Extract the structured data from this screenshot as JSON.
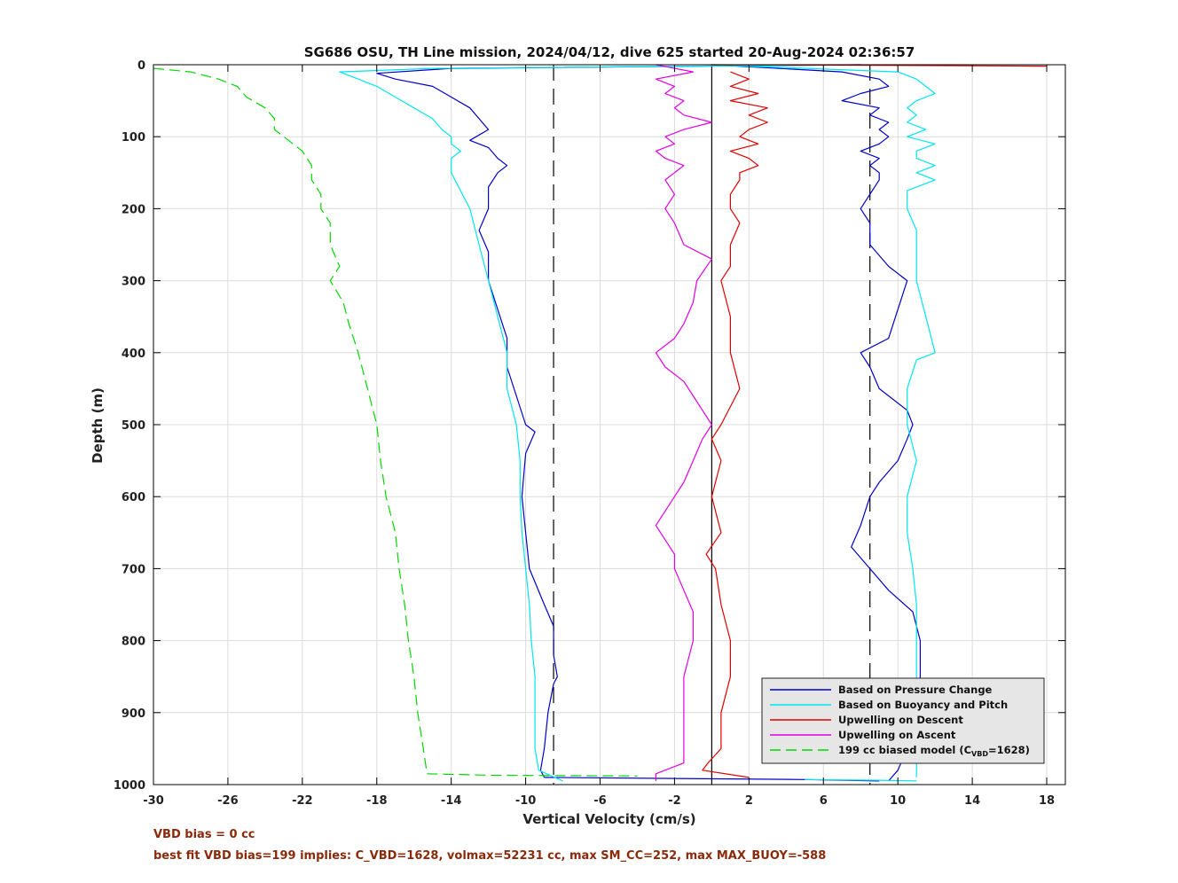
{
  "chart_data": {
    "type": "line",
    "title": "SG686 OSU, TH Line mission, 2024/04/12, dive 625 started 20-Aug-2024 02:36:57",
    "xlabel": "Vertical Velocity (cm/s)",
    "ylabel": "Depth (m)",
    "xlim": [
      -30,
      19
    ],
    "ylim": [
      0,
      1000
    ],
    "y_reversed": true,
    "grid": true,
    "xticks": [
      "-30",
      "-26",
      "-22",
      "-18",
      "-14",
      "-10",
      "-6",
      "-2",
      "2",
      "6",
      "10",
      "14",
      "18"
    ],
    "yticks": [
      "0",
      "100",
      "200",
      "300",
      "400",
      "500",
      "600",
      "700",
      "800",
      "900",
      "1000"
    ],
    "reference_lines": [
      {
        "x": -8.5,
        "style": "dashed",
        "color": "#000000"
      },
      {
        "x": 0,
        "style": "solid",
        "color": "#000000"
      },
      {
        "x": 8.5,
        "style": "dashed",
        "color": "#000000"
      }
    ],
    "legend_position": "bottom-right",
    "series": [
      {
        "name": "Based on Pressure Change",
        "color": "#0000c8",
        "style": "solid",
        "segments": [
          {
            "depth": [
              0,
              5,
              12,
              20,
              30,
              45,
              60,
              75,
              90,
              105,
              115,
              130,
              140,
              150,
              170,
              200,
              230,
              260,
              300,
              340,
              380,
              420,
              460,
              500,
              510,
              540,
              600,
              650,
              700,
              750,
              780,
              800,
              820,
              850,
              860,
              900,
              950,
              980,
              990
            ],
            "value": [
              8,
              -14,
              -18,
              -17,
              -15,
              -14,
              -13,
              -12.5,
              -12,
              -13,
              -12,
              -11.5,
              -11,
              -11.5,
              -12,
              -12,
              -12.5,
              -12,
              -12,
              -11.5,
              -11,
              -11,
              -10.5,
              -10,
              -9.5,
              -10,
              -10.2,
              -10,
              -9.8,
              -9,
              -8.5,
              -8.5,
              -8.5,
              -8.3,
              -8.5,
              -8.8,
              -9,
              -9.2,
              -9
            ]
          },
          {
            "depth": [
              990,
              993,
              995
            ],
            "value": [
              -9,
              5,
              9
            ]
          },
          {
            "depth": [
              0,
              10,
              20,
              30,
              40,
              50,
              60,
              70,
              80,
              90,
              100,
              110,
              120,
              130,
              140,
              150,
              160,
              180,
              200,
              220,
              250,
              280,
              300,
              340,
              380,
              400,
              420,
              450,
              480,
              500,
              520,
              550,
              580,
              600,
              640,
              670,
              700,
              730,
              760,
              800,
              850,
              900,
              950,
              980,
              995
            ],
            "value": [
              0,
              7,
              9,
              9.5,
              8,
              7,
              9,
              8.5,
              9.5,
              9,
              9.5,
              9,
              8,
              9,
              8.5,
              9,
              9,
              8.5,
              8,
              8.5,
              8.5,
              9.5,
              10.5,
              10,
              9.5,
              8,
              8.5,
              9,
              10.5,
              10.8,
              10.5,
              10,
              9,
              8.5,
              8,
              7.5,
              8.5,
              9.5,
              10.8,
              11.2,
              11.2,
              11,
              10.5,
              10,
              9.5
            ]
          }
        ]
      },
      {
        "name": "Based on Buoyancy and Pitch",
        "color": "#00e5ee",
        "style": "solid",
        "segments": [
          {
            "depth": [
              0,
              5,
              10,
              20,
              30,
              45,
              60,
              75,
              90,
              100,
              110,
              120,
              130,
              150,
              200,
              250,
              300,
              350,
              400,
              450,
              500,
              550,
              600,
              650,
              700,
              750,
              800,
              850,
              900,
              950,
              980,
              995
            ],
            "value": [
              8,
              -15,
              -20,
              -19,
              -18,
              -17,
              -16,
              -15,
              -14.5,
              -14,
              -14,
              -13.5,
              -14,
              -14,
              -13,
              -12.5,
              -12,
              -11.5,
              -11,
              -11,
              -10.5,
              -10.3,
              -10.3,
              -10.2,
              -10,
              -9.8,
              -9.7,
              -9.5,
              -9.5,
              -9.5,
              -9.3,
              -8
            ]
          },
          {
            "depth": [
              993,
              994,
              995
            ],
            "value": [
              5,
              9,
              11
            ]
          },
          {
            "depth": [
              0,
              10,
              20,
              30,
              40,
              50,
              60,
              70,
              80,
              90,
              100,
              110,
              120,
              130,
              140,
              150,
              160,
              175,
              200,
              230,
              260,
              300,
              350,
              400,
              410,
              450,
              500,
              550,
              600,
              650,
              700,
              750,
              800,
              850,
              900,
              950,
              990
            ],
            "value": [
              0,
              10,
              11,
              11.5,
              12,
              11,
              10.5,
              11,
              10.5,
              11.5,
              10.5,
              12,
              11,
              11,
              12,
              11,
              12,
              10.5,
              10.5,
              11,
              11,
              11,
              11.5,
              12,
              11,
              10.5,
              10.5,
              11,
              10.5,
              10.5,
              10.8,
              11,
              11,
              11,
              11,
              11,
              11
            ]
          }
        ]
      },
      {
        "name": "Upwelling on Descent",
        "color": "#e00000",
        "style": "solid",
        "segments": [
          {
            "depth": [
              0,
              1,
              2
            ],
            "value": [
              0,
              10,
              18
            ]
          },
          {
            "depth": [
              10,
              20,
              30,
              40,
              50,
              60,
              70,
              80,
              90,
              100,
              110,
              120,
              130,
              140,
              150,
              160,
              180,
              200,
              220,
              250,
              280,
              300,
              350,
              400,
              450,
              500,
              520,
              550,
              600,
              650,
              680,
              700,
              750,
              800,
              850,
              900,
              950,
              970,
              980,
              990
            ],
            "value": [
              1,
              2,
              1,
              2.5,
              1,
              3,
              2,
              3,
              2,
              1.5,
              2.5,
              1,
              2,
              2.5,
              1.5,
              1.5,
              1,
              1,
              1.5,
              1,
              1,
              0.5,
              1,
              1,
              1.5,
              0.5,
              0,
              0.5,
              0,
              0.5,
              -0.3,
              0.2,
              0.5,
              1,
              1,
              0.5,
              0.5,
              -0.2,
              -0.5,
              2
            ]
          }
        ]
      },
      {
        "name": "Upwelling on Ascent",
        "color": "#e100e1",
        "style": "solid",
        "segments": [
          {
            "depth": [
              0,
              10,
              20,
              30,
              40,
              50,
              60,
              70,
              80,
              90,
              100,
              110,
              120,
              130,
              140,
              150,
              160,
              180,
              200,
              220,
              250,
              270,
              300,
              330,
              360,
              380,
              400,
              420,
              440,
              460,
              480,
              500,
              520,
              550,
              580,
              600,
              620,
              640,
              660,
              680,
              700,
              730,
              760,
              800,
              850,
              900,
              940,
              970,
              985,
              995
            ],
            "value": [
              -3,
              -1,
              -3,
              -2,
              -2.5,
              -1.5,
              -2,
              -1.5,
              0,
              -1.5,
              -2.5,
              -2,
              -3,
              -2.5,
              -1.5,
              -2,
              -2.5,
              -2,
              -2.5,
              -2,
              -1.5,
              0,
              -0.8,
              -1,
              -1.5,
              -2,
              -3,
              -2.5,
              -1.5,
              -1,
              -0.5,
              0,
              -0.5,
              -1,
              -1.5,
              -2,
              -2.5,
              -3,
              -2.5,
              -2,
              -2,
              -1.5,
              -1,
              -1,
              -1.5,
              -1.5,
              -1.5,
              -1.5,
              -3,
              -3
            ]
          }
        ]
      },
      {
        "name": "199 cc biased model (C",
        "name_sub": "VBD",
        "name_suffix": "=1628)",
        "color": "#00d800",
        "style": "dashed",
        "segments": [
          {
            "depth": [
              5,
              10,
              20,
              30,
              45,
              60,
              75,
              90,
              100,
              110,
              120,
              140,
              160,
              180,
              200,
              220,
              250,
              280,
              300,
              330,
              360,
              400,
              450,
              500,
              550,
              600,
              650,
              700,
              750,
              800,
              850,
              900,
              950,
              985
            ],
            "value": [
              -30,
              -28,
              -26.5,
              -25.5,
              -25,
              -24,
              -23.5,
              -23.5,
              -23,
              -22.5,
              -22,
              -21.5,
              -21.5,
              -21,
              -21,
              -20.5,
              -20.5,
              -20,
              -20.5,
              -19.8,
              -19.5,
              -19,
              -18.5,
              -18,
              -17.8,
              -17.5,
              -17,
              -16.8,
              -16.5,
              -16.3,
              -16,
              -15.8,
              -15.5,
              -15.3
            ]
          },
          {
            "depth": [
              985,
              987,
              988
            ],
            "value": [
              -15.3,
              -12,
              -4
            ]
          }
        ]
      }
    ]
  },
  "notes": {
    "vbd_bias": "VBD bias = 0 cc",
    "best_fit": "best fit VBD bias=199 implies: C_VBD=1628, volmax=52231 cc, max SM_CC=252, max MAX_BUOY=-588"
  }
}
